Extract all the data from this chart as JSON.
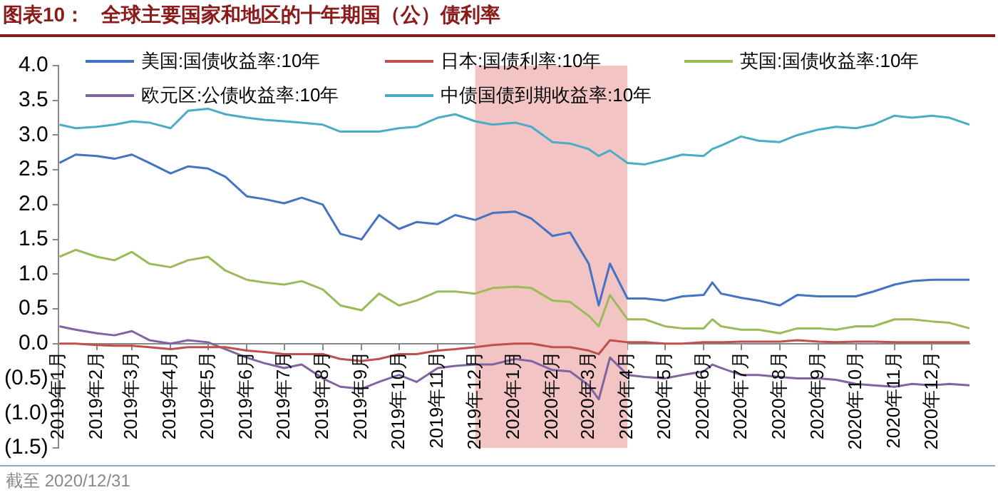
{
  "chart_data": {
    "type": "line",
    "title": "图表10：   全球主要国家和地区的十年期国（公）债利率",
    "x": [
      "2019-01-02",
      "2019-01-15",
      "2019-02-01",
      "2019-02-15",
      "2019-03-01",
      "2019-03-15",
      "2019-04-01",
      "2019-04-15",
      "2019-05-01",
      "2019-05-15",
      "2019-06-01",
      "2019-06-15",
      "2019-07-01",
      "2019-07-15",
      "2019-08-01",
      "2019-08-15",
      "2019-09-01",
      "2019-09-15",
      "2019-10-01",
      "2019-10-15",
      "2019-11-01",
      "2019-11-15",
      "2019-12-01",
      "2019-12-15",
      "2020-01-02",
      "2020-01-15",
      "2020-02-01",
      "2020-02-15",
      "2020-03-01",
      "2020-03-09",
      "2020-03-18",
      "2020-04-01",
      "2020-04-15",
      "2020-05-01",
      "2020-05-15",
      "2020-06-01",
      "2020-06-08",
      "2020-06-15",
      "2020-07-01",
      "2020-07-15",
      "2020-08-01",
      "2020-08-15",
      "2020-09-01",
      "2020-09-15",
      "2020-10-01",
      "2020-10-15",
      "2020-11-01",
      "2020-11-15",
      "2020-12-01",
      "2020-12-15",
      "2020-12-31"
    ],
    "series": [
      {
        "name": "美国:国债收益率:10年",
        "color": "#4472c4",
        "values": [
          2.6,
          2.72,
          2.7,
          2.66,
          2.72,
          2.6,
          2.45,
          2.55,
          2.52,
          2.4,
          2.12,
          2.08,
          2.02,
          2.1,
          2.0,
          1.58,
          1.5,
          1.85,
          1.65,
          1.75,
          1.72,
          1.85,
          1.78,
          1.88,
          1.9,
          1.8,
          1.55,
          1.6,
          1.15,
          0.55,
          1.15,
          0.65,
          0.65,
          0.62,
          0.68,
          0.7,
          0.88,
          0.72,
          0.66,
          0.62,
          0.55,
          0.7,
          0.68,
          0.68,
          0.68,
          0.75,
          0.85,
          0.9,
          0.92,
          0.92,
          0.92
        ]
      },
      {
        "name": "日本:国债利率:10年",
        "color": "#c0504d",
        "values": [
          0.0,
          0.0,
          -0.02,
          -0.03,
          -0.03,
          -0.05,
          -0.08,
          -0.05,
          -0.05,
          -0.05,
          -0.1,
          -0.12,
          -0.15,
          -0.15,
          -0.15,
          -0.22,
          -0.25,
          -0.22,
          -0.15,
          -0.15,
          -0.1,
          -0.08,
          -0.05,
          -0.02,
          0.0,
          0.0,
          -0.05,
          -0.05,
          -0.1,
          -0.15,
          0.05,
          0.02,
          0.02,
          0.0,
          0.0,
          0.02,
          0.02,
          0.02,
          0.03,
          0.03,
          0.03,
          0.05,
          0.03,
          0.02,
          0.03,
          0.03,
          0.02,
          0.02,
          0.02,
          0.02,
          0.02
        ]
      },
      {
        "name": "英国:国债收益率:10年",
        "color": "#9bbb59",
        "values": [
          1.25,
          1.35,
          1.25,
          1.2,
          1.32,
          1.15,
          1.1,
          1.2,
          1.25,
          1.05,
          0.92,
          0.88,
          0.85,
          0.9,
          0.78,
          0.55,
          0.48,
          0.72,
          0.55,
          0.62,
          0.75,
          0.75,
          0.72,
          0.8,
          0.82,
          0.8,
          0.62,
          0.6,
          0.4,
          0.25,
          0.7,
          0.35,
          0.35,
          0.25,
          0.22,
          0.22,
          0.35,
          0.25,
          0.2,
          0.2,
          0.15,
          0.22,
          0.22,
          0.2,
          0.25,
          0.25,
          0.35,
          0.35,
          0.32,
          0.3,
          0.22
        ]
      },
      {
        "name": "欧元区:公债收益率:10年",
        "color": "#8064a2",
        "values": [
          0.25,
          0.2,
          0.15,
          0.12,
          0.18,
          0.05,
          0.0,
          0.05,
          0.02,
          -0.08,
          -0.2,
          -0.28,
          -0.35,
          -0.3,
          -0.5,
          -0.62,
          -0.65,
          -0.55,
          -0.45,
          -0.55,
          -0.35,
          -0.32,
          -0.3,
          -0.3,
          -0.22,
          -0.25,
          -0.38,
          -0.4,
          -0.6,
          -0.8,
          -0.2,
          -0.45,
          -0.48,
          -0.5,
          -0.45,
          -0.4,
          -0.3,
          -0.35,
          -0.45,
          -0.45,
          -0.48,
          -0.5,
          -0.5,
          -0.52,
          -0.58,
          -0.6,
          -0.62,
          -0.58,
          -0.6,
          -0.58,
          -0.6
        ]
      },
      {
        "name": "中债国债到期收益率:10年",
        "color": "#4bacc6",
        "values": [
          3.15,
          3.1,
          3.12,
          3.15,
          3.2,
          3.18,
          3.1,
          3.35,
          3.38,
          3.3,
          3.25,
          3.22,
          3.2,
          3.18,
          3.15,
          3.05,
          3.05,
          3.05,
          3.1,
          3.12,
          3.25,
          3.3,
          3.2,
          3.15,
          3.18,
          3.12,
          2.9,
          2.88,
          2.8,
          2.7,
          2.78,
          2.6,
          2.58,
          2.65,
          2.72,
          2.7,
          2.8,
          2.85,
          2.98,
          2.92,
          2.9,
          3.0,
          3.08,
          3.12,
          3.1,
          3.15,
          3.28,
          3.25,
          3.28,
          3.25,
          3.15
        ]
      }
    ],
    "xlim": [
      "2019-01-01",
      "2020-12-31"
    ],
    "xticks": [
      {
        "value": "2019-01-01",
        "label": "2019年1月"
      },
      {
        "value": "2019-02-01",
        "label": "2019年2月"
      },
      {
        "value": "2019-03-01",
        "label": "2019年3月"
      },
      {
        "value": "2019-04-01",
        "label": "2019年4月"
      },
      {
        "value": "2019-05-01",
        "label": "2019年5月"
      },
      {
        "value": "2019-06-01",
        "label": "2019年6月"
      },
      {
        "value": "2019-07-01",
        "label": "2019年7月"
      },
      {
        "value": "2019-08-01",
        "label": "2019年8月"
      },
      {
        "value": "2019-09-01",
        "label": "2019年9月"
      },
      {
        "value": "2019-10-01",
        "label": "2019年10月"
      },
      {
        "value": "2019-11-01",
        "label": "2019年11月"
      },
      {
        "value": "2019-12-01",
        "label": "2019年12月"
      },
      {
        "value": "2020-01-01",
        "label": "2020年1月"
      },
      {
        "value": "2020-02-01",
        "label": "2020年2月"
      },
      {
        "value": "2020-03-01",
        "label": "2020年3月"
      },
      {
        "value": "2020-04-01",
        "label": "2020年4月"
      },
      {
        "value": "2020-05-01",
        "label": "2020年5月"
      },
      {
        "value": "2020-06-01",
        "label": "2020年6月"
      },
      {
        "value": "2020-07-01",
        "label": "2020年7月"
      },
      {
        "value": "2020-08-01",
        "label": "2020年8月"
      },
      {
        "value": "2020-09-01",
        "label": "2020年9月"
      },
      {
        "value": "2020-10-01",
        "label": "2020年10月"
      },
      {
        "value": "2020-11-01",
        "label": "2020年11月"
      },
      {
        "value": "2020-12-01",
        "label": "2020年12月"
      }
    ],
    "ylim": [
      -1.5,
      4.0
    ],
    "yticks": [
      {
        "value": -1.5,
        "label": "(1.5)"
      },
      {
        "value": -1.0,
        "label": "(1.0)"
      },
      {
        "value": -0.5,
        "label": "(0.5)"
      },
      {
        "value": 0,
        "label": "0.0"
      },
      {
        "value": 0.5,
        "label": "0.5"
      },
      {
        "value": 1.0,
        "label": "1.0"
      },
      {
        "value": 1.5,
        "label": "1.5"
      },
      {
        "value": 2.0,
        "label": "2.0"
      },
      {
        "value": 2.5,
        "label": "2.5"
      },
      {
        "value": 3.0,
        "label": "3.0"
      },
      {
        "value": 3.5,
        "label": "3.5"
      },
      {
        "value": 4.0,
        "label": "4.0"
      }
    ],
    "bands": [
      {
        "axis": "x",
        "from": "2019-12-01",
        "to": "2020-04-01",
        "color": "#f2c4c4"
      }
    ],
    "annotations": [
      "截至 2020/12/31"
    ],
    "legend": "top",
    "grid": false,
    "marker": "none",
    "line_style": "solid"
  }
}
